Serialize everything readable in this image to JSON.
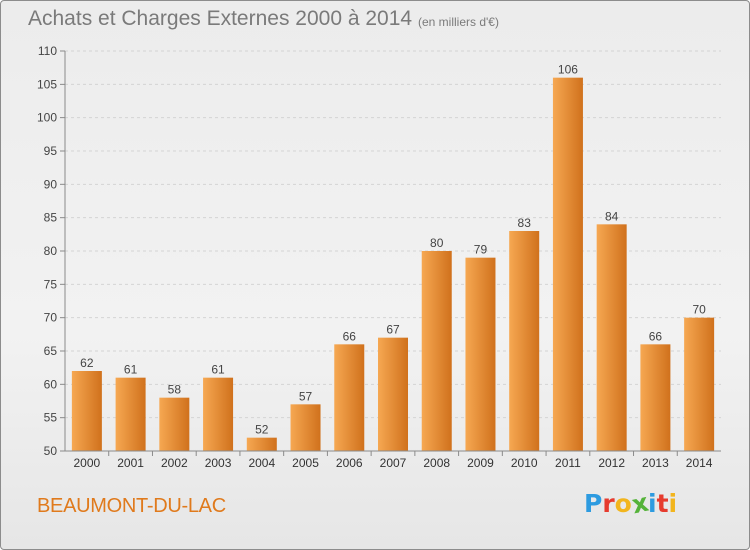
{
  "header": {
    "title": "Achats et Charges Externes 2000 à 2014",
    "subtitle": "(en milliers d'€)"
  },
  "footer": {
    "city": "BEAUMONT-DU-LAC",
    "logo": [
      "P",
      "r",
      "o",
      "x",
      "i",
      "t",
      "i"
    ],
    "logo_colors": [
      "#2d9be0",
      "#e63b2e",
      "#f2b51d",
      "#55b33a",
      "#2d9be0",
      "#e63b2e",
      "#f2b51d"
    ]
  },
  "colors": {
    "bar_light": "#f6a852",
    "bar_dark": "#d0711c",
    "grid": "#d4d4d4",
    "axis": "#8a8a8a"
  },
  "chart_data": {
    "type": "bar",
    "title": "Achats et Charges Externes 2000 à 2014",
    "subtitle": "(en milliers d'€)",
    "categories": [
      "2000",
      "2001",
      "2002",
      "2003",
      "2004",
      "2005",
      "2006",
      "2007",
      "2008",
      "2009",
      "2010",
      "2011",
      "2012",
      "2013",
      "2014"
    ],
    "values": [
      62,
      61,
      58,
      61,
      52,
      57,
      66,
      67,
      80,
      79,
      83,
      106,
      84,
      66,
      70
    ],
    "ylim": [
      50,
      110
    ],
    "yticks": [
      50,
      55,
      60,
      65,
      70,
      75,
      80,
      85,
      90,
      95,
      100,
      105,
      110
    ],
    "xlabel": "",
    "ylabel": "",
    "grid": "horizontal dashed",
    "data_labels": true
  }
}
